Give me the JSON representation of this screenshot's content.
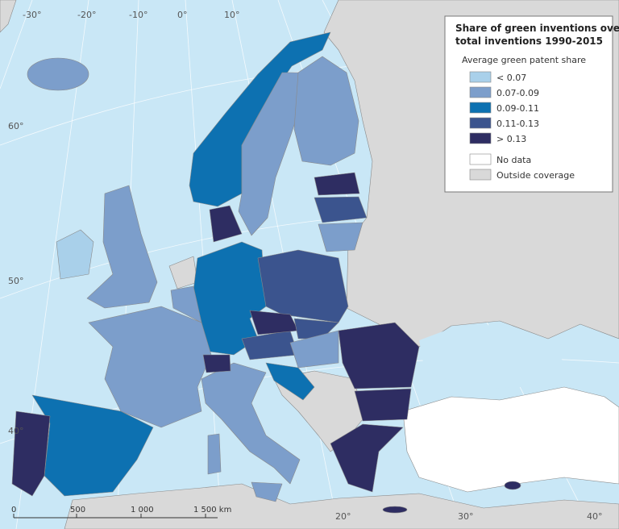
{
  "title_lines": [
    "Share of green inventions over",
    "total inventions 1990-2015"
  ],
  "legend": {
    "title": "Average green patent share",
    "items": [
      {
        "label": "< 0.07",
        "color": "#a9d0ea"
      },
      {
        "label": "0.07-0.09",
        "color": "#7c9ecb"
      },
      {
        "label": "0.09-0.11",
        "color": "#0d71b1"
      },
      {
        "label": "0.11-0.13",
        "color": "#3b548e"
      },
      {
        "label": "> 0.13",
        "color": "#2e2d62"
      },
      {
        "label": "No data",
        "color": "#ffffff"
      },
      {
        "label": "Outside coverage",
        "color": "#d9d9d9"
      }
    ]
  },
  "graticule": {
    "longitude_top": [
      "-30°",
      "-20°",
      "-10°",
      "0°",
      "10°"
    ],
    "longitude_bottom": [
      "20°",
      "30°",
      "40°"
    ],
    "latitude": [
      "60°",
      "50°",
      "40°"
    ]
  },
  "scale_bar": {
    "labels": [
      "0",
      "500",
      "1 000",
      "1 500 km"
    ]
  }
}
